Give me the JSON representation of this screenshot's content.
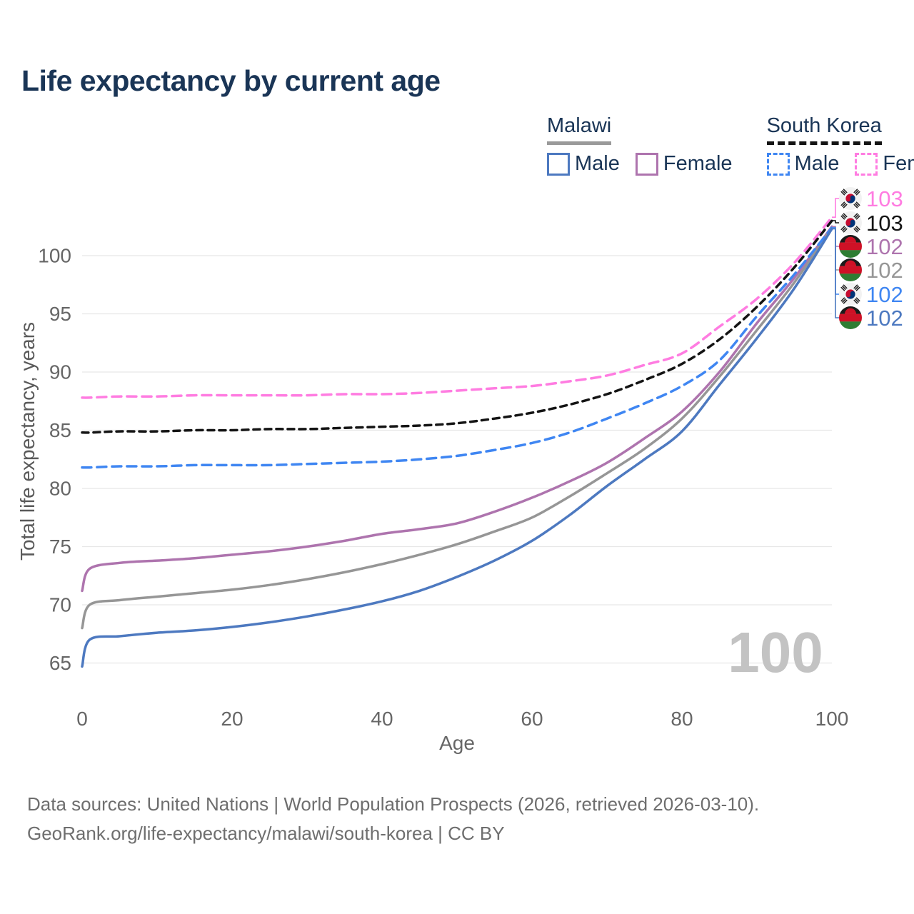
{
  "page": {
    "title": "Life expectancy by current age",
    "watermark": "100",
    "footer_line1": "Data sources: United Nations | World Population Prospects (2026, retrieved 2026-03-10).",
    "footer_line2": "GeoRank.org/life-expectancy/malawi/south-korea | CC BY"
  },
  "legend": {
    "groups": [
      {
        "title": "Malawi",
        "underline_style": "solid",
        "underline_color": "#9a9a9a",
        "items": [
          {
            "label": "Male",
            "color": "#4d79c0",
            "dashed": false
          },
          {
            "label": "Female",
            "color": "#ae74ae",
            "dashed": false
          }
        ]
      },
      {
        "title": "South Korea",
        "underline_style": "dashed",
        "underline_color": "#141414",
        "items": [
          {
            "label": "Male",
            "color": "#3f86f2",
            "dashed": true
          },
          {
            "label": "Female",
            "color": "#ff7ce1",
            "dashed": true
          }
        ]
      }
    ]
  },
  "chart_data": {
    "type": "line",
    "title": "Life expectancy by current age",
    "xlabel": "Age",
    "ylabel": "Total life expectancy, years",
    "xlim": [
      0,
      100
    ],
    "ylim": [
      63,
      104
    ],
    "x_ticks": [
      0,
      20,
      40,
      60,
      80,
      100
    ],
    "y_ticks": [
      65,
      70,
      75,
      80,
      85,
      90,
      95,
      100
    ],
    "grid": true,
    "legend_position": "top-right",
    "x": [
      0,
      1,
      5,
      10,
      15,
      20,
      25,
      30,
      35,
      40,
      45,
      50,
      55,
      60,
      65,
      70,
      75,
      80,
      85,
      90,
      95,
      100
    ],
    "series": [
      {
        "name": "South Korea Female",
        "flag": "kr",
        "dashed": true,
        "color": "#ff7ce1",
        "end_label": "103",
        "values": [
          87.8,
          87.8,
          87.9,
          87.9,
          88.0,
          88.0,
          88.0,
          88.0,
          88.1,
          88.1,
          88.2,
          88.4,
          88.6,
          88.8,
          89.2,
          89.7,
          90.6,
          91.6,
          93.9,
          96.3,
          99.4,
          103.3
        ]
      },
      {
        "name": "South Korea",
        "flag": "kr",
        "dashed": true,
        "color": "#141414",
        "end_label": "103",
        "values": [
          84.8,
          84.8,
          84.9,
          84.9,
          85.0,
          85.0,
          85.1,
          85.1,
          85.2,
          85.3,
          85.4,
          85.6,
          86.0,
          86.5,
          87.2,
          88.1,
          89.3,
          90.7,
          92.8,
          95.6,
          99.0,
          103.0
        ]
      },
      {
        "name": "Malawi Female",
        "flag": "mw",
        "dashed": false,
        "color": "#ae74ae",
        "end_label": "102",
        "values": [
          71.2,
          73.1,
          73.6,
          73.8,
          74.0,
          74.3,
          74.6,
          75.0,
          75.5,
          76.1,
          76.5,
          77.0,
          78.0,
          79.2,
          80.6,
          82.2,
          84.3,
          86.6,
          90.0,
          94.2,
          98.1,
          102.5
        ]
      },
      {
        "name": "Malawi",
        "flag": "mw",
        "dashed": false,
        "color": "#969696",
        "end_label": "102",
        "values": [
          68.0,
          70.0,
          70.4,
          70.7,
          71.0,
          71.3,
          71.7,
          72.2,
          72.8,
          73.5,
          74.3,
          75.2,
          76.3,
          77.5,
          79.3,
          81.3,
          83.4,
          86.0,
          89.6,
          93.6,
          97.7,
          102.4
        ]
      },
      {
        "name": "South Korea Male",
        "flag": "kr",
        "dashed": true,
        "color": "#3f86f2",
        "end_label": "102",
        "values": [
          81.8,
          81.8,
          81.9,
          81.9,
          82.0,
          82.0,
          82.0,
          82.1,
          82.2,
          82.3,
          82.5,
          82.8,
          83.3,
          83.9,
          84.8,
          86.0,
          87.3,
          88.8,
          91.0,
          94.8,
          98.4,
          102.4
        ]
      },
      {
        "name": "Malawi Male",
        "flag": "mw",
        "dashed": false,
        "color": "#4d79c0",
        "end_label": "102",
        "values": [
          64.7,
          67.0,
          67.3,
          67.6,
          67.8,
          68.1,
          68.5,
          69.0,
          69.6,
          70.3,
          71.2,
          72.4,
          73.8,
          75.5,
          77.7,
          80.2,
          82.5,
          84.9,
          88.9,
          92.9,
          97.2,
          102.3
        ]
      }
    ]
  }
}
